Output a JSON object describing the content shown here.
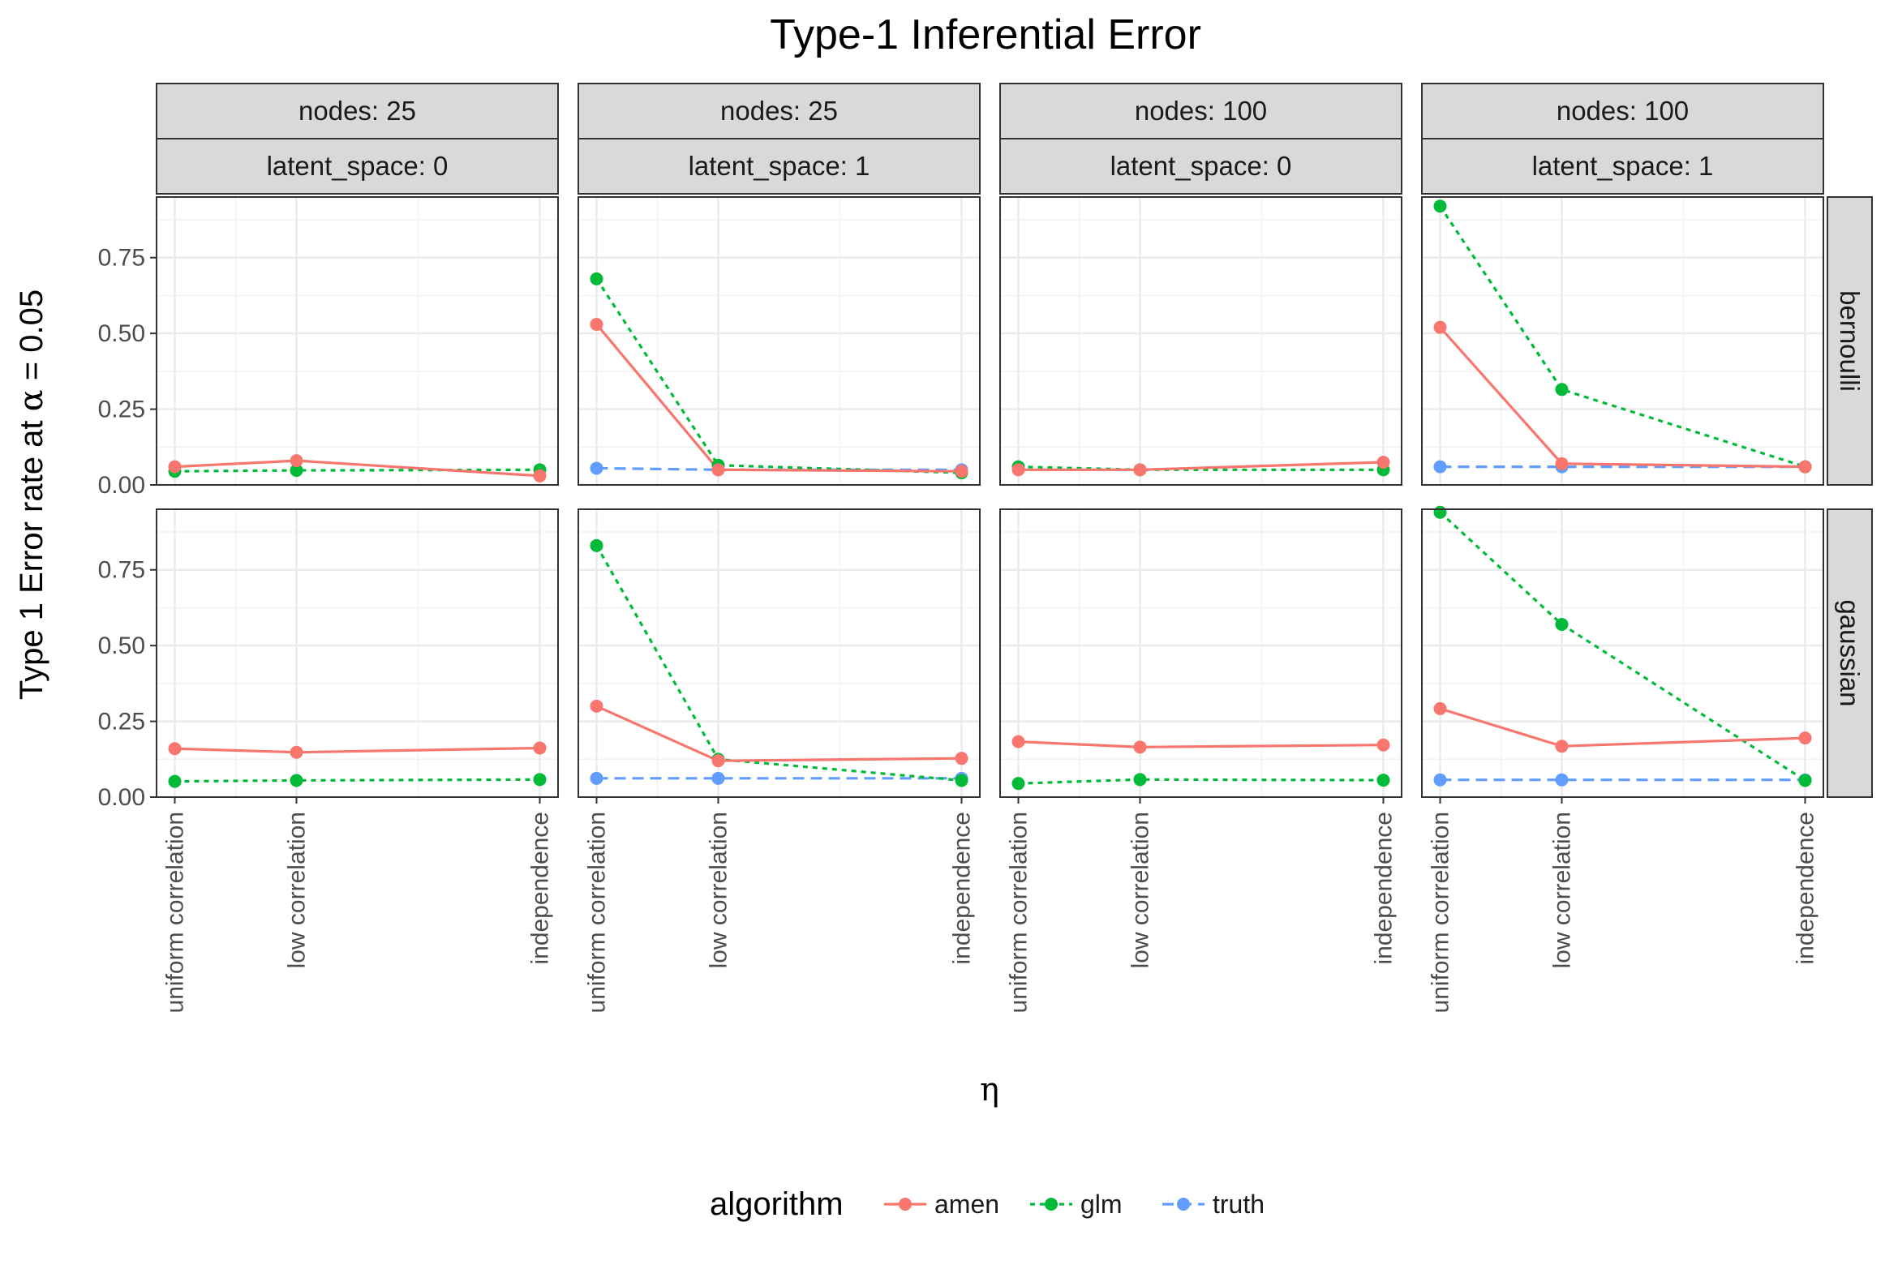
{
  "chart_data": {
    "type": "line",
    "title": "Type-1 Inferential Error",
    "xlabel": "η",
    "ylabel": {
      "prefix": "Type 1 Error rate at ",
      "symbol": "α",
      "suffix": " = 0.05"
    },
    "x": [
      "uniform correlation",
      "low correlation",
      "independence"
    ],
    "x_positions": [
      0,
      1,
      3
    ],
    "ylim": [
      0,
      0.95
    ],
    "yticks": [
      "0.00",
      "0.25",
      "0.50",
      "0.75"
    ],
    "ytick_values": [
      0,
      0.25,
      0.5,
      0.75
    ],
    "grid": true,
    "legend": {
      "title": "algorithm",
      "placement": "bottom",
      "entries": [
        "amen",
        "glm",
        "truth"
      ]
    },
    "colors": {
      "amen": "#f8766d",
      "glm": "#00ba38",
      "truth": "#619cff"
    },
    "col_strips": [
      {
        "top": "nodes: 25",
        "bottom": "latent_space: 0"
      },
      {
        "top": "nodes: 25",
        "bottom": "latent_space: 1"
      },
      {
        "top": "nodes: 100",
        "bottom": "latent_space: 0"
      },
      {
        "top": "nodes: 100",
        "bottom": "latent_space: 1"
      }
    ],
    "row_strips": [
      "bernoulli",
      "gaussian"
    ],
    "panels": [
      {
        "row": 0,
        "col": 0,
        "series": [
          {
            "name": "amen",
            "values": [
              0.06,
              0.08,
              0.03
            ]
          },
          {
            "name": "glm",
            "values": [
              0.045,
              0.048,
              0.05
            ]
          }
        ]
      },
      {
        "row": 0,
        "col": 1,
        "series": [
          {
            "name": "amen",
            "values": [
              0.53,
              0.05,
              0.045
            ]
          },
          {
            "name": "glm",
            "values": [
              0.68,
              0.065,
              0.04
            ]
          },
          {
            "name": "truth",
            "values": [
              0.055,
              0.05,
              0.05
            ]
          }
        ]
      },
      {
        "row": 0,
        "col": 2,
        "series": [
          {
            "name": "amen",
            "values": [
              0.05,
              0.05,
              0.075
            ]
          },
          {
            "name": "glm",
            "values": [
              0.06,
              0.05,
              0.05
            ]
          }
        ]
      },
      {
        "row": 0,
        "col": 3,
        "series": [
          {
            "name": "amen",
            "values": [
              0.52,
              0.07,
              0.06
            ]
          },
          {
            "name": "glm",
            "values": [
              0.92,
              0.315,
              0.06
            ]
          },
          {
            "name": "truth",
            "values": [
              0.06,
              0.06,
              0.06
            ]
          }
        ]
      },
      {
        "row": 1,
        "col": 0,
        "series": [
          {
            "name": "amen",
            "values": [
              0.16,
              0.148,
              0.162
            ]
          },
          {
            "name": "glm",
            "values": [
              0.052,
              0.055,
              0.058
            ]
          }
        ]
      },
      {
        "row": 1,
        "col": 1,
        "series": [
          {
            "name": "amen",
            "values": [
              0.3,
              0.12,
              0.128
            ]
          },
          {
            "name": "glm",
            "values": [
              0.83,
              0.125,
              0.055
            ]
          },
          {
            "name": "truth",
            "values": [
              0.062,
              0.062,
              0.062
            ]
          }
        ]
      },
      {
        "row": 1,
        "col": 2,
        "series": [
          {
            "name": "amen",
            "values": [
              0.183,
              0.165,
              0.172
            ]
          },
          {
            "name": "glm",
            "values": [
              0.045,
              0.058,
              0.056
            ]
          }
        ]
      },
      {
        "row": 1,
        "col": 3,
        "series": [
          {
            "name": "amen",
            "values": [
              0.292,
              0.168,
              0.195
            ]
          },
          {
            "name": "glm",
            "values": [
              0.94,
              0.57,
              0.055
            ]
          },
          {
            "name": "truth",
            "values": [
              0.057,
              0.057,
              0.057
            ]
          }
        ]
      }
    ]
  }
}
